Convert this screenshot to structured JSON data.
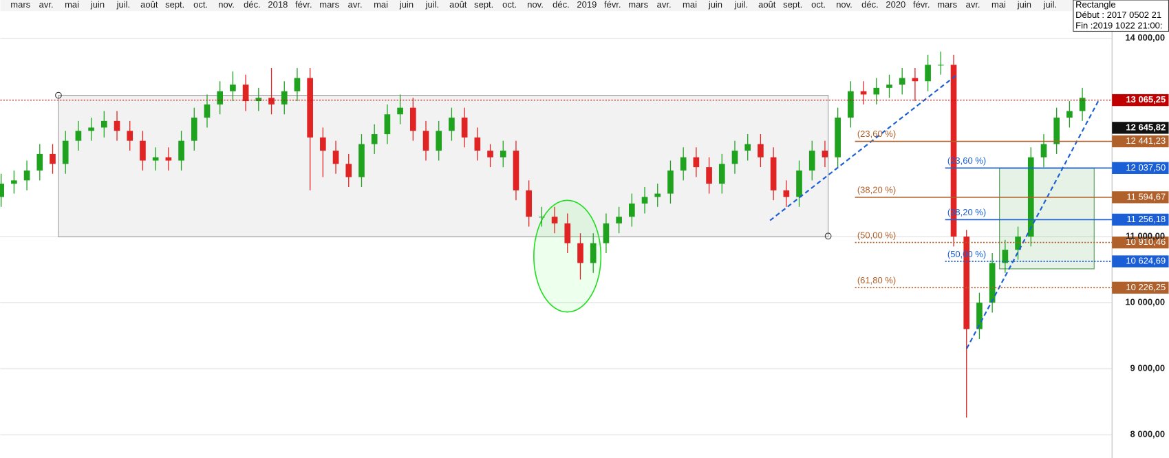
{
  "chart_data": {
    "type": "candlestick",
    "x_labels": [
      "mars",
      "avr.",
      "mai",
      "juin",
      "juil.",
      "août",
      "sept.",
      "oct.",
      "nov.",
      "déc.",
      "2018",
      "févr.",
      "mars",
      "avr.",
      "mai",
      "juin",
      "juil.",
      "août",
      "sept.",
      "oct.",
      "nov.",
      "déc.",
      "2019",
      "févr.",
      "mars",
      "avr.",
      "mai",
      "juin",
      "juil.",
      "août",
      "sept.",
      "oct.",
      "nov.",
      "déc.",
      "2020",
      "févr.",
      "mars",
      "avr.",
      "mai",
      "juin",
      "juil."
    ],
    "bars": [
      [
        11600,
        11950,
        11450,
        11800
      ],
      [
        11800,
        12000,
        11650,
        11850
      ],
      [
        11850,
        12150,
        11700,
        12000
      ],
      [
        12000,
        12400,
        11850,
        12250
      ],
      [
        12250,
        12400,
        11950,
        12100
      ],
      [
        12100,
        12600,
        11950,
        12450
      ],
      [
        12450,
        12750,
        12300,
        12600
      ],
      [
        12600,
        12800,
        12450,
        12650
      ],
      [
        12650,
        12900,
        12500,
        12750
      ],
      [
        12750,
        12900,
        12450,
        12600
      ],
      [
        12600,
        12750,
        12300,
        12450
      ],
      [
        12450,
        12600,
        12000,
        12150
      ],
      [
        12150,
        12350,
        12000,
        12200
      ],
      [
        12200,
        12350,
        12000,
        12150
      ],
      [
        12150,
        12600,
        12000,
        12450
      ],
      [
        12450,
        12950,
        12300,
        12800
      ],
      [
        12800,
        13150,
        12650,
        13000
      ],
      [
        13000,
        13350,
        12850,
        13200
      ],
      [
        13200,
        13500,
        13050,
        13300
      ],
      [
        13300,
        13450,
        12900,
        13050
      ],
      [
        13050,
        13250,
        12900,
        13100
      ],
      [
        13100,
        13550,
        12850,
        13000
      ],
      [
        13000,
        13350,
        12850,
        13200
      ],
      [
        13200,
        13550,
        13050,
        13400
      ],
      [
        13400,
        13550,
        11700,
        12500
      ],
      [
        12500,
        12650,
        11900,
        12300
      ],
      [
        12300,
        12450,
        11950,
        12100
      ],
      [
        12100,
        12250,
        11750,
        11900
      ],
      [
        11900,
        12550,
        11750,
        12400
      ],
      [
        12400,
        12700,
        12250,
        12550
      ],
      [
        12550,
        13000,
        12400,
        12850
      ],
      [
        12850,
        13150,
        12700,
        12950
      ],
      [
        12950,
        13100,
        12450,
        12600
      ],
      [
        12600,
        12750,
        12150,
        12300
      ],
      [
        12300,
        12750,
        12150,
        12600
      ],
      [
        12600,
        12950,
        12450,
        12800
      ],
      [
        12800,
        12950,
        12350,
        12500
      ],
      [
        12500,
        12650,
        12150,
        12300
      ],
      [
        12300,
        12400,
        12050,
        12200
      ],
      [
        12200,
        12450,
        12050,
        12300
      ],
      [
        12300,
        12450,
        11550,
        11700
      ],
      [
        11700,
        11850,
        11150,
        11300
      ],
      [
        11300,
        11450,
        11150,
        11300
      ],
      [
        11300,
        11450,
        11050,
        11200
      ],
      [
        11200,
        11350,
        10750,
        10900
      ],
      [
        10900,
        11050,
        10350,
        10600
      ],
      [
        10600,
        11050,
        10450,
        10900
      ],
      [
        10900,
        11350,
        10750,
        11200
      ],
      [
        11200,
        11450,
        11050,
        11300
      ],
      [
        11300,
        11650,
        11150,
        11500
      ],
      [
        11500,
        11750,
        11350,
        11600
      ],
      [
        11600,
        11800,
        11450,
        11650
      ],
      [
        11650,
        12150,
        11500,
        12000
      ],
      [
        12000,
        12350,
        11850,
        12200
      ],
      [
        12200,
        12350,
        11900,
        12050
      ],
      [
        12050,
        12200,
        11650,
        11800
      ],
      [
        11800,
        12250,
        11650,
        12100
      ],
      [
        12100,
        12450,
        11950,
        12300
      ],
      [
        12300,
        12550,
        12150,
        12400
      ],
      [
        12400,
        12550,
        12050,
        12200
      ],
      [
        12200,
        12350,
        11550,
        11700
      ],
      [
        11700,
        11850,
        11450,
        11600
      ],
      [
        11600,
        12150,
        11450,
        12000
      ],
      [
        12000,
        12450,
        11850,
        12300
      ],
      [
        12300,
        12450,
        12050,
        12200
      ],
      [
        12200,
        12950,
        12050,
        12800
      ],
      [
        12800,
        13350,
        12650,
        13200
      ],
      [
        13200,
        13350,
        13000,
        13150
      ],
      [
        13150,
        13400,
        13000,
        13250
      ],
      [
        13250,
        13450,
        13100,
        13300
      ],
      [
        13300,
        13550,
        13150,
        13400
      ],
      [
        13400,
        13550,
        13050,
        13350
      ],
      [
        13350,
        13750,
        13200,
        13600
      ],
      [
        13600,
        13800,
        13450,
        13600
      ],
      [
        13600,
        13750,
        10850,
        11000
      ],
      [
        11000,
        11100,
        8260,
        9600
      ],
      [
        9600,
        10150,
        9450,
        10000
      ],
      [
        10000,
        10750,
        9850,
        10600
      ],
      [
        10600,
        10950,
        10450,
        10800
      ],
      [
        10800,
        11150,
        10650,
        11000
      ],
      [
        11000,
        12350,
        10850,
        12200
      ],
      [
        12200,
        12550,
        12050,
        12400
      ],
      [
        12400,
        12950,
        12250,
        12800
      ],
      [
        12800,
        13050,
        12650,
        12900
      ],
      [
        12900,
        13250,
        12750,
        13100
      ]
    ],
    "up_color": "#1fa31f",
    "down_color": "#e02424",
    "ylim": [
      7660,
      14400
    ],
    "yticks": [
      {
        "value": 8000,
        "label": "8 000,00"
      },
      {
        "value": 9000,
        "label": "9 000,00"
      },
      {
        "value": 10000,
        "label": "10 000,00"
      },
      {
        "value": 11000,
        "label": "11 000,00"
      },
      {
        "value": 14000,
        "label": "14 000,00"
      }
    ],
    "grid": true,
    "price_lines": [
      {
        "value": 13065.25,
        "label": "13 065,25",
        "color": "#c00000",
        "line": "dotted"
      },
      {
        "value": 12645.82,
        "label": "12 645,82",
        "color": "#111111",
        "line": "none"
      }
    ],
    "fib_sets": [
      {
        "color": "#b0602a",
        "levels": [
          {
            "name": "(23,60 %)",
            "value": 12441.23,
            "label": "12 441,23",
            "line": "solid"
          },
          {
            "name": "(38,20 %)",
            "value": 11594.67,
            "label": "11 594,67",
            "line": "solid"
          },
          {
            "name": "(50,00 %)",
            "value": 10910.46,
            "label": "10 910,46",
            "line": "dotted"
          },
          {
            "name": "(61,80 %)",
            "value": 10226.25,
            "label": "10 226,25",
            "line": "dotted"
          }
        ]
      },
      {
        "color": "#1a5fd6",
        "levels": [
          {
            "name": "(23,60 %)",
            "value": 12037.5,
            "label": "12 037,50",
            "line": "solid"
          },
          {
            "name": "(38,20 %)",
            "value": 11256.18,
            "label": "11 256,18",
            "line": "solid"
          },
          {
            "name": "(50,00 %)",
            "value": 10624.69,
            "label": "10 624,69",
            "line": "dotted"
          }
        ]
      }
    ]
  },
  "tooltip": {
    "title": "Rectangle",
    "start": "Début : 2017 0502 21",
    "end": "Fin :2019 1022 21:00:"
  }
}
